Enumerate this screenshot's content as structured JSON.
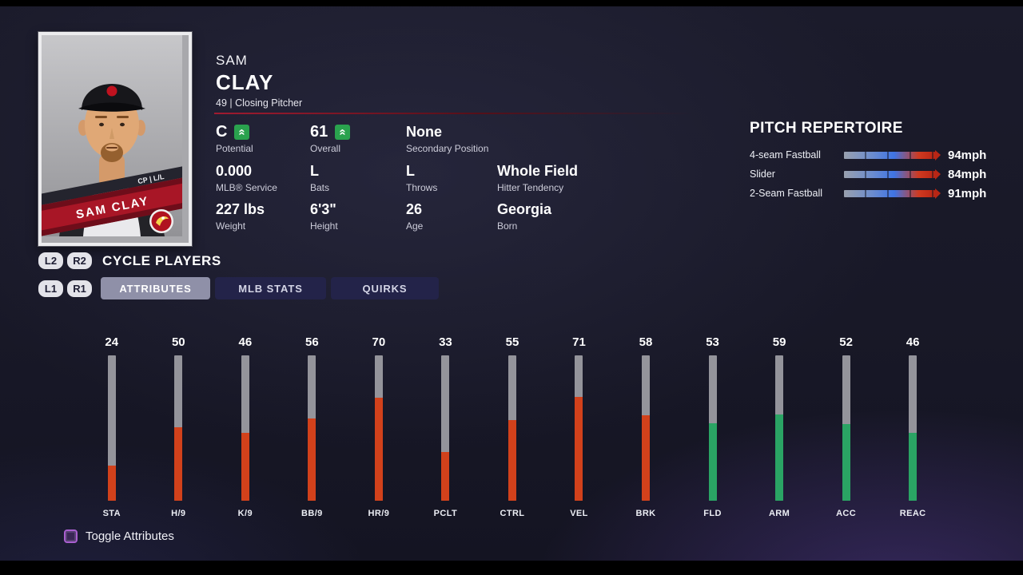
{
  "header": {
    "first_name": "SAM",
    "last_name": "CLAY",
    "sub": "49 | Closing Pitcher"
  },
  "card": {
    "position_hand": "CP | L/L",
    "banner_name": "SAM CLAY"
  },
  "info": {
    "potential": {
      "value": "C",
      "label": "Potential"
    },
    "overall": {
      "value": "61",
      "label": "Overall"
    },
    "secondary": {
      "value": "None",
      "label": "Secondary Position"
    },
    "service": {
      "value": "0.000",
      "label": "MLB® Service"
    },
    "bats": {
      "value": "L",
      "label": "Bats"
    },
    "throws": {
      "value": "L",
      "label": "Throws"
    },
    "tendency": {
      "value": "Whole Field",
      "label": "Hitter Tendency"
    },
    "weight": {
      "value": "227 lbs",
      "label": "Weight"
    },
    "height": {
      "value": "6'3\"",
      "label": "Height"
    },
    "age": {
      "value": "26",
      "label": "Age"
    },
    "born": {
      "value": "Georgia",
      "label": "Born"
    }
  },
  "pitch_repertoire": {
    "title": "PITCH REPERTOIRE",
    "pitches": [
      {
        "name": "4-seam Fastball",
        "speed": "94mph"
      },
      {
        "name": "Slider",
        "speed": "84mph"
      },
      {
        "name": "2-Seam Fastball",
        "speed": "91mph"
      }
    ]
  },
  "controls": {
    "l2": "L2",
    "r2": "R2",
    "cycle_label": "CYCLE PLAYERS",
    "l1": "L1",
    "r1": "R1",
    "tabs": [
      {
        "label": "ATTRIBUTES",
        "selected": true
      },
      {
        "label": "MLB STATS",
        "selected": false
      },
      {
        "label": "QUIRKS",
        "selected": false
      }
    ]
  },
  "attributes": {
    "max": 99,
    "bars": [
      {
        "label": "STA",
        "value": 24,
        "color": "red"
      },
      {
        "label": "H/9",
        "value": 50,
        "color": "red"
      },
      {
        "label": "K/9",
        "value": 46,
        "color": "red"
      },
      {
        "label": "BB/9",
        "value": 56,
        "color": "red"
      },
      {
        "label": "HR/9",
        "value": 70,
        "color": "red"
      },
      {
        "label": "PCLT",
        "value": 33,
        "color": "red"
      },
      {
        "label": "CTRL",
        "value": 55,
        "color": "red"
      },
      {
        "label": "VEL",
        "value": 71,
        "color": "red"
      },
      {
        "label": "BRK",
        "value": 58,
        "color": "red"
      },
      {
        "label": "FLD",
        "value": 53,
        "color": "green"
      },
      {
        "label": "ARM",
        "value": 59,
        "color": "green"
      },
      {
        "label": "ACC",
        "value": 52,
        "color": "green"
      },
      {
        "label": "REAC",
        "value": 46,
        "color": "green"
      }
    ]
  },
  "footer": {
    "hint": "Toggle Attributes"
  },
  "colors": {
    "red_fill": "#d2411b",
    "green_fill": "#2aa464",
    "accent_red": "#a01b30",
    "tab_selected": "#8f90a8",
    "tab_unselected": "#232349"
  }
}
